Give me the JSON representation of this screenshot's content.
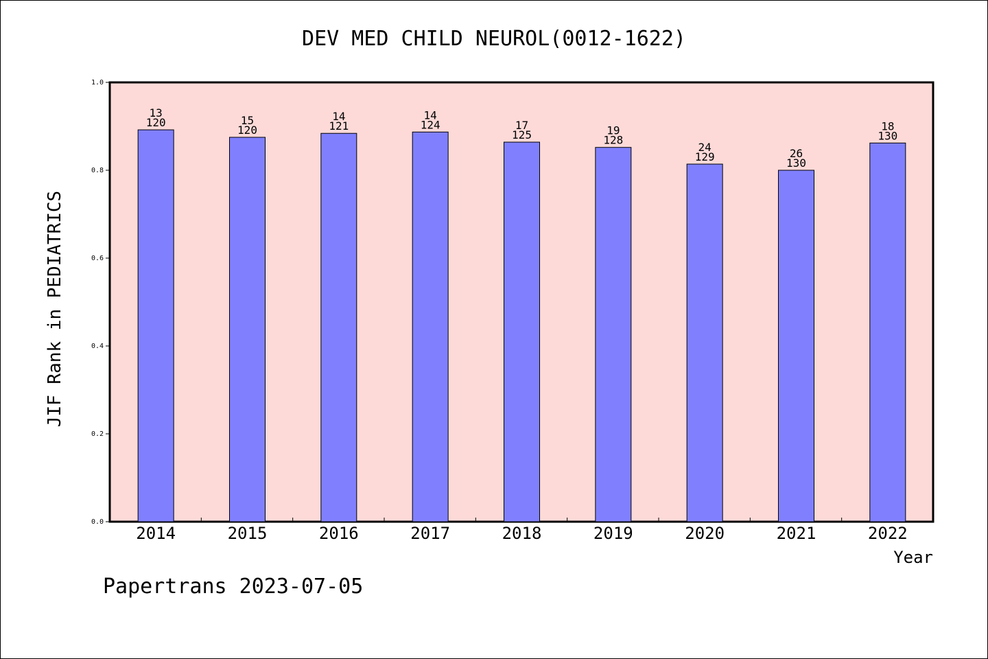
{
  "chart_data": {
    "type": "bar",
    "title": "DEV MED CHILD NEUROL(0012-1622)",
    "xlabel": "Year",
    "ylabel": "JIF Rank in PEDIATRICS",
    "categories": [
      "2014",
      "2015",
      "2016",
      "2017",
      "2018",
      "2019",
      "2020",
      "2021",
      "2022"
    ],
    "values": [
      0.892,
      0.875,
      0.884,
      0.887,
      0.864,
      0.852,
      0.814,
      0.8,
      0.862
    ],
    "ranks": [
      "13",
      "15",
      "14",
      "14",
      "17",
      "19",
      "24",
      "26",
      "18"
    ],
    "totals": [
      "120",
      "120",
      "121",
      "124",
      "125",
      "128",
      "129",
      "130",
      "130"
    ],
    "ylim": [
      0,
      1.0
    ],
    "yticks": [
      "0.0",
      "0.2",
      "0.4",
      "0.6",
      "0.8",
      "1.0"
    ],
    "ytick_values": [
      0,
      0.2,
      0.4,
      0.6,
      0.8,
      1.0
    ],
    "grid": false,
    "colors": {
      "plot_background": "#fddad8",
      "bar_fill": "#8080ff",
      "bar_stroke": "#000000"
    }
  },
  "footer": {
    "source_text": "Papertrans 2023-07-05"
  }
}
